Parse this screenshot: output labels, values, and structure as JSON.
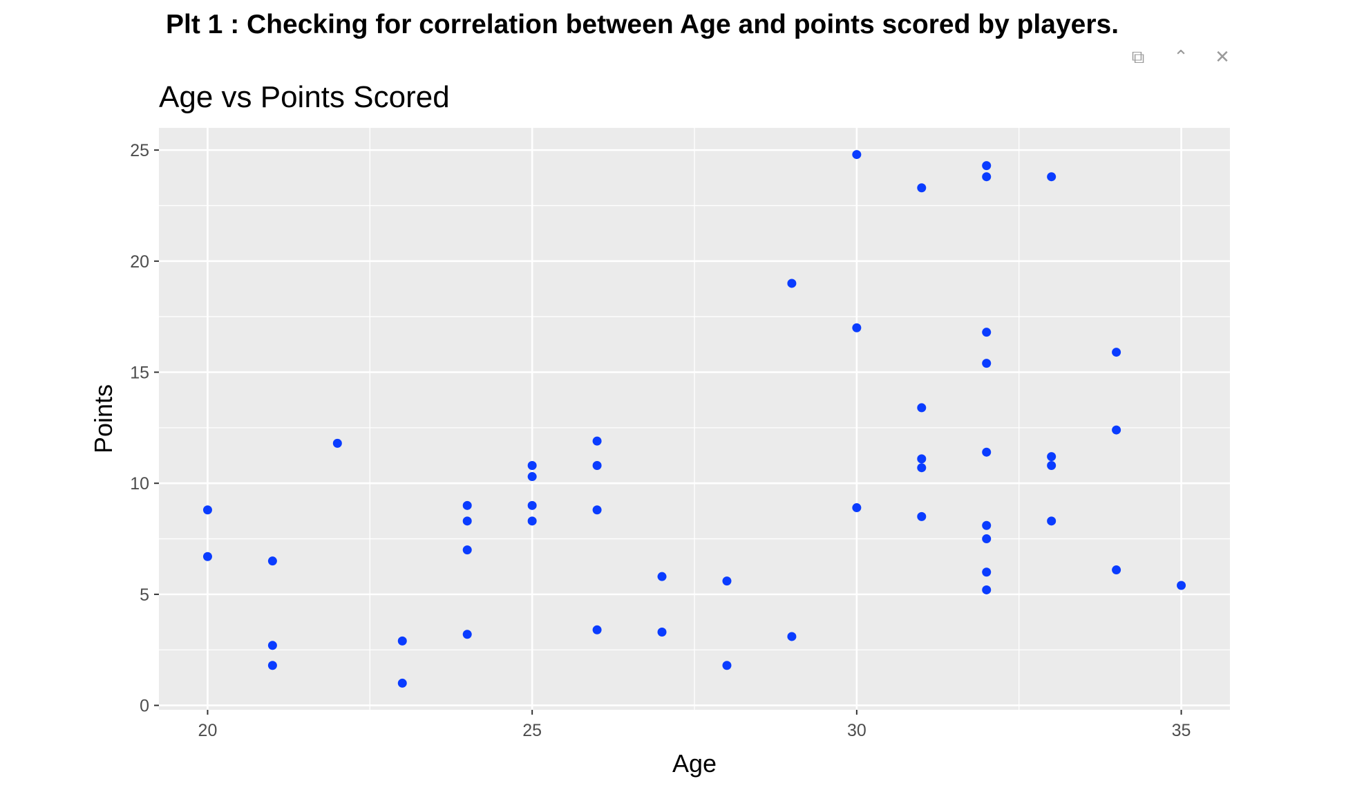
{
  "page": {
    "heading": "Plt 1 : Checking for correlation between Age and points scored by players."
  },
  "toolbar": {
    "items": [
      {
        "name": "popout-icon",
        "glyph": "⧉"
      },
      {
        "name": "collapse-icon",
        "glyph": "⌃"
      },
      {
        "name": "close-icon",
        "glyph": "✕"
      }
    ]
  },
  "chart_data": {
    "type": "scatter",
    "title": "Age vs Points Scored",
    "xlabel": "Age",
    "ylabel": "Points",
    "xlim": [
      19.25,
      35.75
    ],
    "ylim": [
      -0.2,
      26
    ],
    "xticks": [
      20,
      25,
      30,
      35
    ],
    "yticks": [
      0,
      5,
      10,
      15,
      20,
      25
    ],
    "grid": true,
    "background": "#ebebeb",
    "grid_color": "#ffffff",
    "point_color": "#0a3cff",
    "points": [
      {
        "x": 20,
        "y": 8.8
      },
      {
        "x": 20,
        "y": 6.7
      },
      {
        "x": 21,
        "y": 6.5
      },
      {
        "x": 21,
        "y": 2.7
      },
      {
        "x": 21,
        "y": 1.8
      },
      {
        "x": 22,
        "y": 11.8
      },
      {
        "x": 23,
        "y": 2.9
      },
      {
        "x": 23,
        "y": 1.0
      },
      {
        "x": 24,
        "y": 9.0
      },
      {
        "x": 24,
        "y": 8.3
      },
      {
        "x": 24,
        "y": 7.0
      },
      {
        "x": 24,
        "y": 3.2
      },
      {
        "x": 25,
        "y": 10.8
      },
      {
        "x": 25,
        "y": 10.3
      },
      {
        "x": 25,
        "y": 9.0
      },
      {
        "x": 25,
        "y": 8.3
      },
      {
        "x": 26,
        "y": 11.9
      },
      {
        "x": 26,
        "y": 10.8
      },
      {
        "x": 26,
        "y": 8.8
      },
      {
        "x": 26,
        "y": 3.4
      },
      {
        "x": 27,
        "y": 5.8
      },
      {
        "x": 27,
        "y": 3.3
      },
      {
        "x": 28,
        "y": 5.6
      },
      {
        "x": 28,
        "y": 1.8
      },
      {
        "x": 29,
        "y": 19.0
      },
      {
        "x": 29,
        "y": 3.1
      },
      {
        "x": 30,
        "y": 24.8
      },
      {
        "x": 30,
        "y": 17.0
      },
      {
        "x": 30,
        "y": 8.9
      },
      {
        "x": 31,
        "y": 23.3
      },
      {
        "x": 31,
        "y": 13.4
      },
      {
        "x": 31,
        "y": 11.1
      },
      {
        "x": 31,
        "y": 10.7
      },
      {
        "x": 31,
        "y": 8.5
      },
      {
        "x": 32,
        "y": 24.3
      },
      {
        "x": 32,
        "y": 23.8
      },
      {
        "x": 32,
        "y": 16.8
      },
      {
        "x": 32,
        "y": 15.4
      },
      {
        "x": 32,
        "y": 11.4
      },
      {
        "x": 32,
        "y": 8.1
      },
      {
        "x": 32,
        "y": 7.5
      },
      {
        "x": 32,
        "y": 6.0
      },
      {
        "x": 32,
        "y": 5.2
      },
      {
        "x": 33,
        "y": 23.8
      },
      {
        "x": 33,
        "y": 11.2
      },
      {
        "x": 33,
        "y": 10.8
      },
      {
        "x": 33,
        "y": 8.3
      },
      {
        "x": 34,
        "y": 15.9
      },
      {
        "x": 34,
        "y": 12.4
      },
      {
        "x": 34,
        "y": 6.1
      },
      {
        "x": 35,
        "y": 5.4
      }
    ]
  }
}
